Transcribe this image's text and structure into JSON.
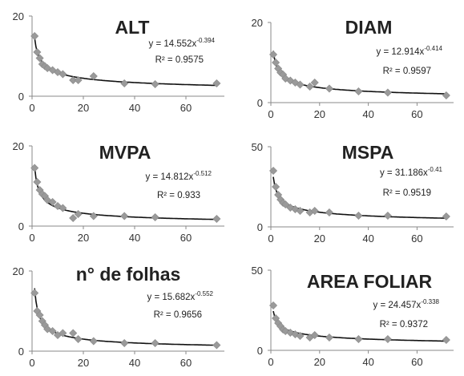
{
  "chart_data": [
    {
      "type": "scatter",
      "title": "ALT",
      "xlim": [
        0,
        75
      ],
      "ylim": [
        0,
        20
      ],
      "xticks": [
        "0",
        "20",
        "40",
        "60"
      ],
      "yticks": [
        "0",
        "20"
      ],
      "points": [
        [
          1,
          15
        ],
        [
          2,
          11
        ],
        [
          3,
          9.5
        ],
        [
          4,
          8
        ],
        [
          5,
          7.5
        ],
        [
          6,
          7
        ],
        [
          8,
          6.5
        ],
        [
          10,
          6
        ],
        [
          12,
          5.5
        ],
        [
          16,
          4
        ],
        [
          18,
          4
        ],
        [
          24,
          5
        ],
        [
          36,
          3.2
        ],
        [
          48,
          3
        ],
        [
          72,
          3.2
        ]
      ],
      "fit": {
        "a": 14.552,
        "b": -0.394
      },
      "equation": {
        "base": "y = 14.552x",
        "exp": "-0.394",
        "r2": "R² = 0.9575"
      }
    },
    {
      "type": "scatter",
      "title": "DIAM",
      "xlim": [
        0,
        75
      ],
      "ylim": [
        0,
        20
      ],
      "xticks": [
        "0",
        "20",
        "40",
        "60"
      ],
      "yticks": [
        "0",
        "20"
      ],
      "points": [
        [
          1,
          12
        ],
        [
          2,
          10
        ],
        [
          3,
          8.5
        ],
        [
          4,
          7.5
        ],
        [
          5,
          7
        ],
        [
          6,
          6
        ],
        [
          8,
          5.5
        ],
        [
          10,
          5
        ],
        [
          12,
          4.5
        ],
        [
          16,
          4
        ],
        [
          18,
          5
        ],
        [
          24,
          3.5
        ],
        [
          36,
          2.8
        ],
        [
          48,
          2.5
        ],
        [
          72,
          1.8
        ]
      ],
      "fit": {
        "a": 12.914,
        "b": -0.414
      },
      "equation": {
        "base": "y = 12.914x",
        "exp": "-0.414",
        "r2": "R² = 0.9597"
      }
    },
    {
      "type": "scatter",
      "title": "MVPA",
      "xlim": [
        0,
        75
      ],
      "ylim": [
        0,
        20
      ],
      "xticks": [
        "0",
        "20",
        "40",
        "60"
      ],
      "yticks": [
        "0",
        "20"
      ],
      "points": [
        [
          1,
          14.5
        ],
        [
          2,
          11
        ],
        [
          3,
          9
        ],
        [
          4,
          8
        ],
        [
          5,
          7.5
        ],
        [
          6,
          6.5
        ],
        [
          8,
          6
        ],
        [
          10,
          5
        ],
        [
          12,
          4.5
        ],
        [
          16,
          2
        ],
        [
          18,
          3
        ],
        [
          24,
          2.5
        ],
        [
          36,
          2.5
        ],
        [
          48,
          2.2
        ],
        [
          72,
          1.8
        ]
      ],
      "fit": {
        "a": 14.812,
        "b": -0.512
      },
      "equation": {
        "base": "y = 14.812x",
        "exp": "-0.512",
        "r2": "R² = 0.933"
      }
    },
    {
      "type": "scatter",
      "title": "MSPA",
      "xlim": [
        0,
        75
      ],
      "ylim": [
        0,
        50
      ],
      "xticks": [
        "0",
        "20",
        "40",
        "60"
      ],
      "yticks": [
        "0",
        "50"
      ],
      "points": [
        [
          1,
          35
        ],
        [
          2,
          25
        ],
        [
          3,
          20
        ],
        [
          4,
          17
        ],
        [
          5,
          15
        ],
        [
          6,
          14
        ],
        [
          8,
          12
        ],
        [
          10,
          11
        ],
        [
          12,
          10
        ],
        [
          16,
          9
        ],
        [
          18,
          10
        ],
        [
          24,
          9
        ],
        [
          36,
          7
        ],
        [
          48,
          7
        ],
        [
          72,
          6.5
        ]
      ],
      "fit": {
        "a": 31.186,
        "b": -0.41
      },
      "equation": {
        "base": "y = 31.186x",
        "exp": "-0.41",
        "r2": "R² = 0.9519"
      }
    },
    {
      "type": "scatter",
      "title": "n° de folhas",
      "xlim": [
        0,
        75
      ],
      "ylim": [
        0,
        20
      ],
      "xticks": [
        "0",
        "20",
        "40",
        "60"
      ],
      "yticks": [
        "0",
        "20"
      ],
      "points": [
        [
          1,
          14.5
        ],
        [
          2,
          10
        ],
        [
          3,
          9
        ],
        [
          4,
          7.5
        ],
        [
          5,
          6.5
        ],
        [
          6,
          5.5
        ],
        [
          8,
          5
        ],
        [
          10,
          4
        ],
        [
          12,
          4.5
        ],
        [
          16,
          4.5
        ],
        [
          18,
          3
        ],
        [
          24,
          2.5
        ],
        [
          36,
          2
        ],
        [
          48,
          2
        ],
        [
          72,
          1.5
        ]
      ],
      "fit": {
        "a": 15.682,
        "b": -0.552
      },
      "equation": {
        "base": "y = 15.682x",
        "exp": "-0.552",
        "r2": "R² = 0.9656"
      }
    },
    {
      "type": "scatter",
      "title": "AREA FOLIAR",
      "xlim": [
        0,
        75
      ],
      "ylim": [
        0,
        50
      ],
      "xticks": [
        "0",
        "20",
        "40",
        "60"
      ],
      "yticks": [
        "0",
        "50"
      ],
      "points": [
        [
          1,
          28
        ],
        [
          2,
          20
        ],
        [
          3,
          17
        ],
        [
          4,
          15
        ],
        [
          5,
          13
        ],
        [
          6,
          12
        ],
        [
          8,
          11
        ],
        [
          10,
          10
        ],
        [
          12,
          9
        ],
        [
          16,
          8
        ],
        [
          18,
          9.5
        ],
        [
          24,
          8
        ],
        [
          36,
          7
        ],
        [
          48,
          7
        ],
        [
          72,
          6.5
        ]
      ],
      "fit": {
        "a": 24.457,
        "b": -0.338
      },
      "equation": {
        "base": "y = 24.457x",
        "exp": "-0.338",
        "r2": "R² = 0.9372"
      }
    }
  ]
}
